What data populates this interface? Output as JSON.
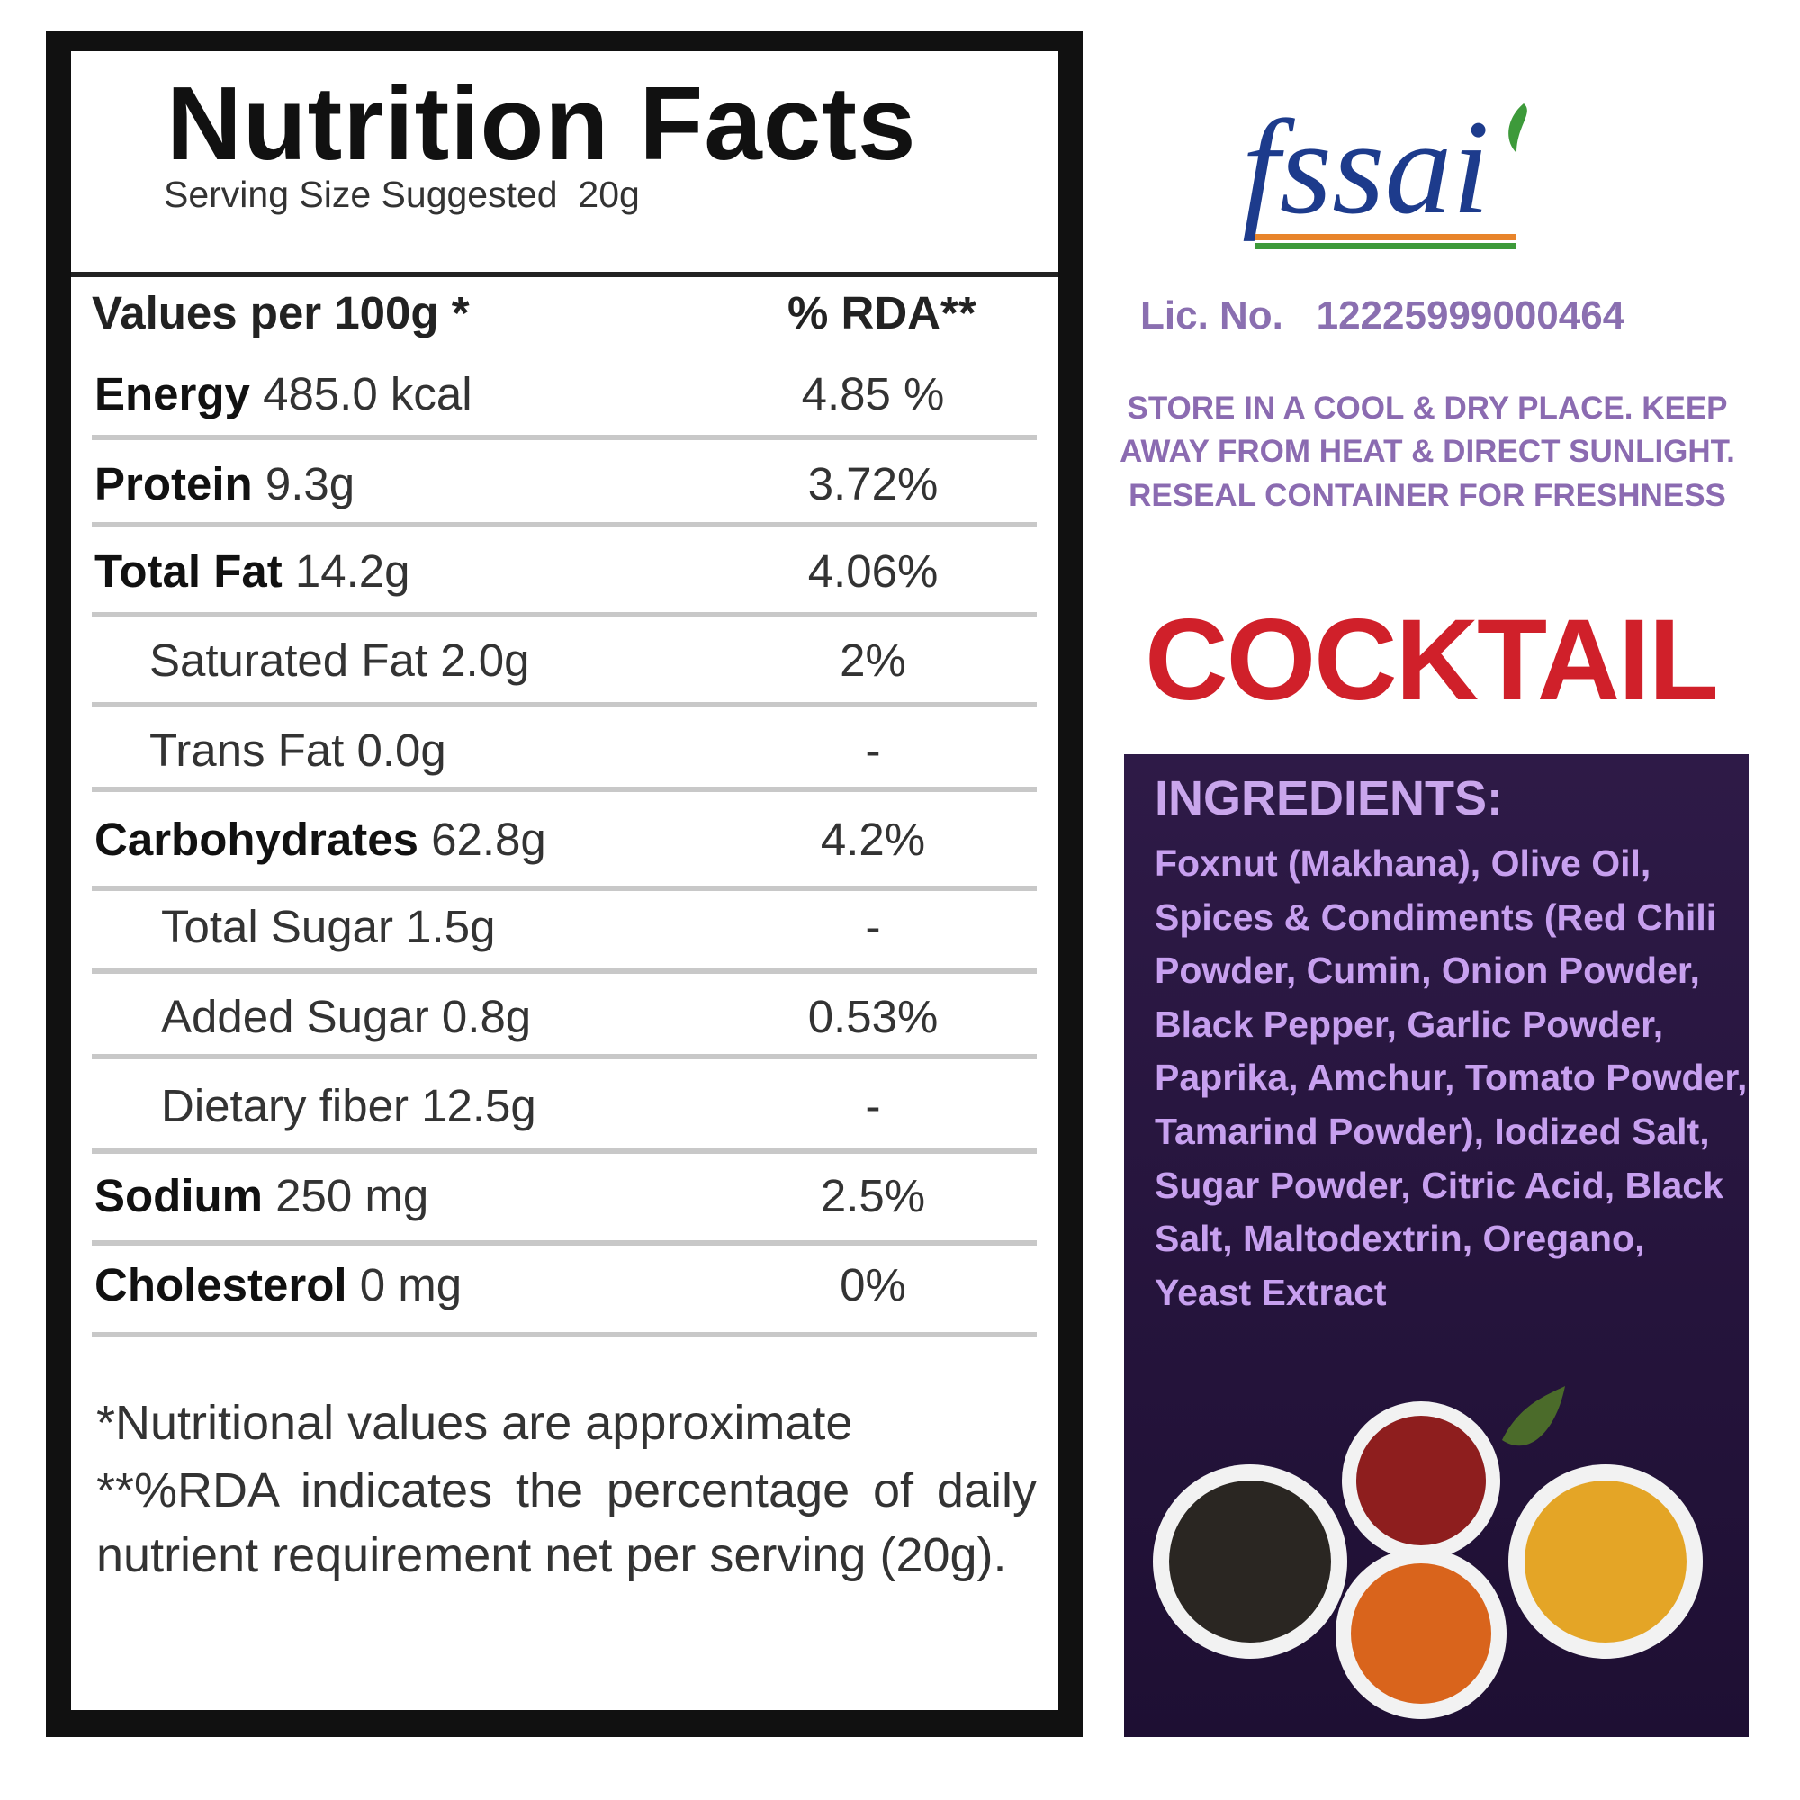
{
  "nutrition": {
    "title": "Nutrition Facts",
    "serving": "Serving Size Suggested  20g",
    "header": {
      "left": "Values per 100g *",
      "right": "% RDA**"
    },
    "rows": [
      {
        "name": "Energy",
        "amount": "485.0 kcal",
        "rda": "4.85 %"
      },
      {
        "name": "Protein",
        "amount": "9.3g",
        "rda": "3.72%"
      },
      {
        "name": "Total Fat",
        "amount": "14.2g",
        "rda": "4.06%"
      },
      {
        "name": "Saturated Fat",
        "amount": "2.0g",
        "rda": "2%"
      },
      {
        "name": "Trans Fat",
        "amount": "0.0g",
        "rda": "-"
      },
      {
        "name": "Carbohydrates",
        "amount": "62.8g",
        "rda": "4.2%"
      },
      {
        "name": "Total Sugar",
        "amount": "1.5g",
        "rda": "-"
      },
      {
        "name": "Added Sugar",
        "amount": "0.8g",
        "rda": "0.53%"
      },
      {
        "name": "Dietary fiber",
        "amount": "12.5g",
        "rda": "-"
      },
      {
        "name": "Sodium",
        "amount": "250 mg",
        "rda": "2.5%"
      },
      {
        "name": "Cholesterol",
        "amount": "0 mg",
        "rda": "0%"
      }
    ],
    "footnotes": [
      "*Nutritional values are approximate",
      "**%RDA indicates the percentage of daily nutrient requirement net per serving (20g)."
    ]
  },
  "logo": {
    "text": "fssai"
  },
  "license": {
    "label": "Lic. No.",
    "number": "12225999000464"
  },
  "storage": [
    "STORE IN A COOL & DRY PLACE. KEEP",
    "AWAY FROM HEAT & DIRECT SUNLIGHT.",
    "RESEAL CONTAINER FOR FRESHNESS"
  ],
  "product": {
    "name": "COCKTAIL"
  },
  "ingredients": {
    "title": "INGREDIENTS:",
    "text": "Foxnut (Makhana), Olive Oil, Spices & Condiments (Red Chili Powder, Cumin, Onion Powder, Black Pepper, Garlic Powder, Paprika, Amchur, Tomato Powder, Tamarind Powder), Iodized Salt, Sugar Powder, Citric Acid, Black Salt, Maltodextrin, Oregano, Yeast Extract"
  }
}
